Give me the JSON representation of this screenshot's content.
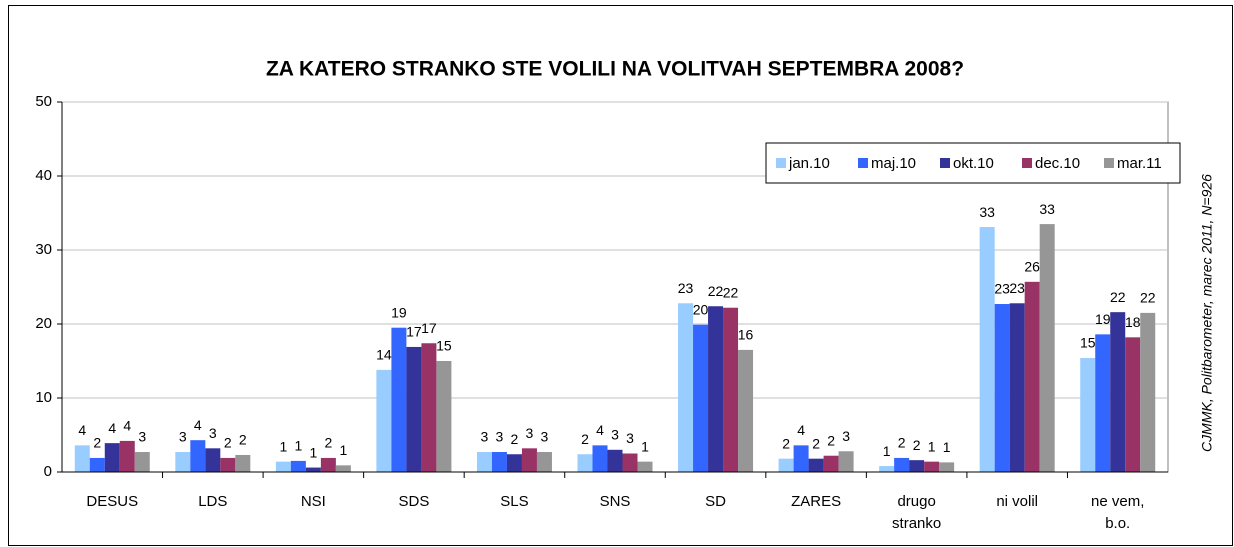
{
  "chart_data": {
    "type": "bar",
    "title": "ZA KATERO STRANKO STE VOLILI NA VOLITVAH SEPTEMBRA 2008?",
    "annotation": "CJMMK, Politbarometer, marec 2011, N=926",
    "categories": [
      "DESUS",
      "LDS",
      "NSI",
      "SDS",
      "SLS",
      "SNS",
      "SD",
      "ZARES",
      "drugo stranko",
      "ni volil",
      "ne vem, b.o."
    ],
    "series": [
      {
        "name": "jan.10",
        "color": "#99ccff",
        "values": [
          3.6,
          2.7,
          1.4,
          13.8,
          2.7,
          2.4,
          22.8,
          1.8,
          0.8,
          33.1,
          15.4
        ],
        "value_labels": [
          "4",
          "3",
          "1",
          "14",
          "3",
          "2",
          "23",
          "2",
          "1",
          "33",
          "15"
        ]
      },
      {
        "name": "maj.10",
        "color": "#3366ff",
        "values": [
          1.9,
          4.3,
          1.5,
          19.5,
          2.7,
          3.6,
          19.9,
          3.6,
          1.9,
          22.7,
          18.6
        ],
        "value_labels": [
          "2",
          "4",
          "1",
          "19",
          "3",
          "4",
          "20",
          "4",
          "2",
          "23",
          "19"
        ]
      },
      {
        "name": "okt.10",
        "color": "#333399",
        "values": [
          3.9,
          3.2,
          0.6,
          16.9,
          2.4,
          3.0,
          22.4,
          1.8,
          1.6,
          22.8,
          21.6
        ],
        "value_labels": [
          "4",
          "3",
          "1",
          "17",
          "2",
          "3",
          "22",
          "2",
          "2",
          "23",
          "22"
        ]
      },
      {
        "name": "dec.10",
        "color": "#993366",
        "values": [
          4.2,
          1.9,
          1.9,
          17.4,
          3.2,
          2.5,
          22.2,
          2.2,
          1.4,
          25.7,
          18.2
        ],
        "value_labels": [
          "4",
          "2",
          "2",
          "17",
          "3",
          "3",
          "22",
          "2",
          "1",
          "26",
          "18"
        ]
      },
      {
        "name": "mar.11",
        "color": "#969696",
        "values": [
          2.7,
          2.3,
          0.9,
          15.0,
          2.7,
          1.4,
          16.5,
          2.8,
          1.3,
          33.5,
          21.5
        ],
        "value_labels": [
          "3",
          "2",
          "1",
          "15",
          "3",
          "1",
          "16",
          "3",
          "1",
          "33",
          "22"
        ]
      }
    ],
    "ylim": [
      0,
      50
    ],
    "yticks": [
      0,
      10,
      20,
      30,
      40,
      50
    ],
    "grid": true,
    "legend": "top-right"
  }
}
